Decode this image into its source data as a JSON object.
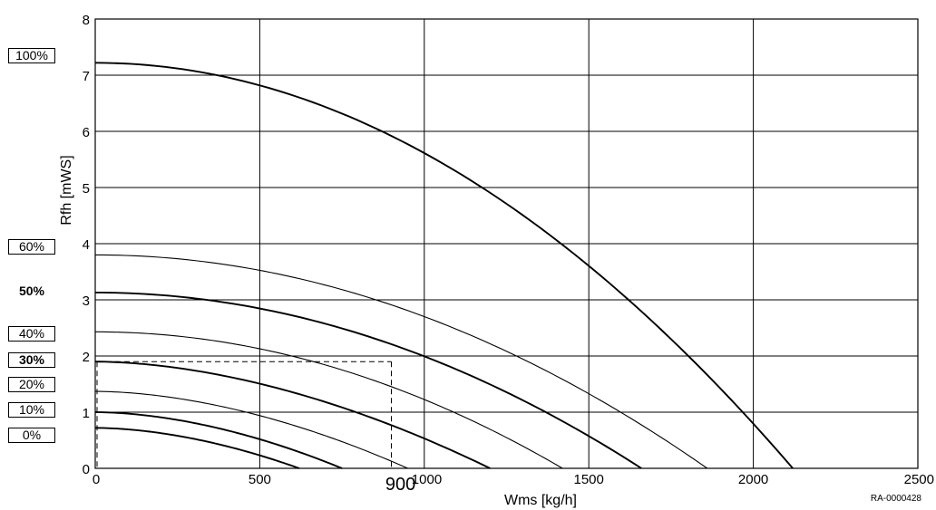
{
  "chart_data": {
    "type": "line",
    "xlabel": "Wms [kg/h]",
    "ylabel": "Rfh [mWS]",
    "xlim": [
      0,
      2500
    ],
    "ylim": [
      0,
      8
    ],
    "x_ticks": [
      "0",
      "500",
      "1000",
      "1500",
      "2500"
    ],
    "y_ticks": [
      "0",
      "1",
      "2",
      "3",
      "4",
      "5",
      "6",
      "7",
      "8"
    ],
    "extra_x_tick": "900",
    "x_tick_2000": "2000",
    "grid": true,
    "code": "RA-0000428",
    "series": [
      {
        "name": "100%",
        "y0": 7.22,
        "x_end": 2120,
        "exp": 2.0,
        "weight": "bold"
      },
      {
        "name": "60%",
        "y0": 3.8,
        "x_end": 1860,
        "exp": 2.0,
        "weight": "thin"
      },
      {
        "name": "50%",
        "y0": 3.13,
        "x_end": 1660,
        "exp": 2.0,
        "weight": "bold"
      },
      {
        "name": "40%",
        "y0": 2.43,
        "x_end": 1420,
        "exp": 2.0,
        "weight": "thin"
      },
      {
        "name": "30%",
        "y0": 1.9,
        "x_end": 1200,
        "exp": 1.8,
        "weight": "bold"
      },
      {
        "name": "20%",
        "y0": 1.37,
        "x_end": 950,
        "exp": 1.8,
        "weight": "thin"
      },
      {
        "name": "10%",
        "y0": 1.0,
        "x_end": 750,
        "exp": 1.8,
        "weight": "bold"
      },
      {
        "name": "0%",
        "y0": 0.72,
        "x_end": 620,
        "exp": 1.8,
        "weight": "bold"
      }
    ],
    "reference": {
      "x": 900,
      "y": 1.9
    }
  },
  "legend": [
    {
      "text": "100%",
      "y_val": 7.35,
      "style": "boxed"
    },
    {
      "text": "60%",
      "y_val": 3.95,
      "style": "boxed"
    },
    {
      "text": "50%",
      "y_val": 3.15,
      "style": "bold"
    },
    {
      "text": "40%",
      "y_val": 2.4,
      "style": "boxed"
    },
    {
      "text": "30%",
      "y_val": 1.93,
      "style": "boxed bold"
    },
    {
      "text": "20%",
      "y_val": 1.5,
      "style": "boxed"
    },
    {
      "text": "10%",
      "y_val": 1.05,
      "style": "boxed"
    },
    {
      "text": "0%",
      "y_val": 0.6,
      "style": "boxed"
    }
  ]
}
